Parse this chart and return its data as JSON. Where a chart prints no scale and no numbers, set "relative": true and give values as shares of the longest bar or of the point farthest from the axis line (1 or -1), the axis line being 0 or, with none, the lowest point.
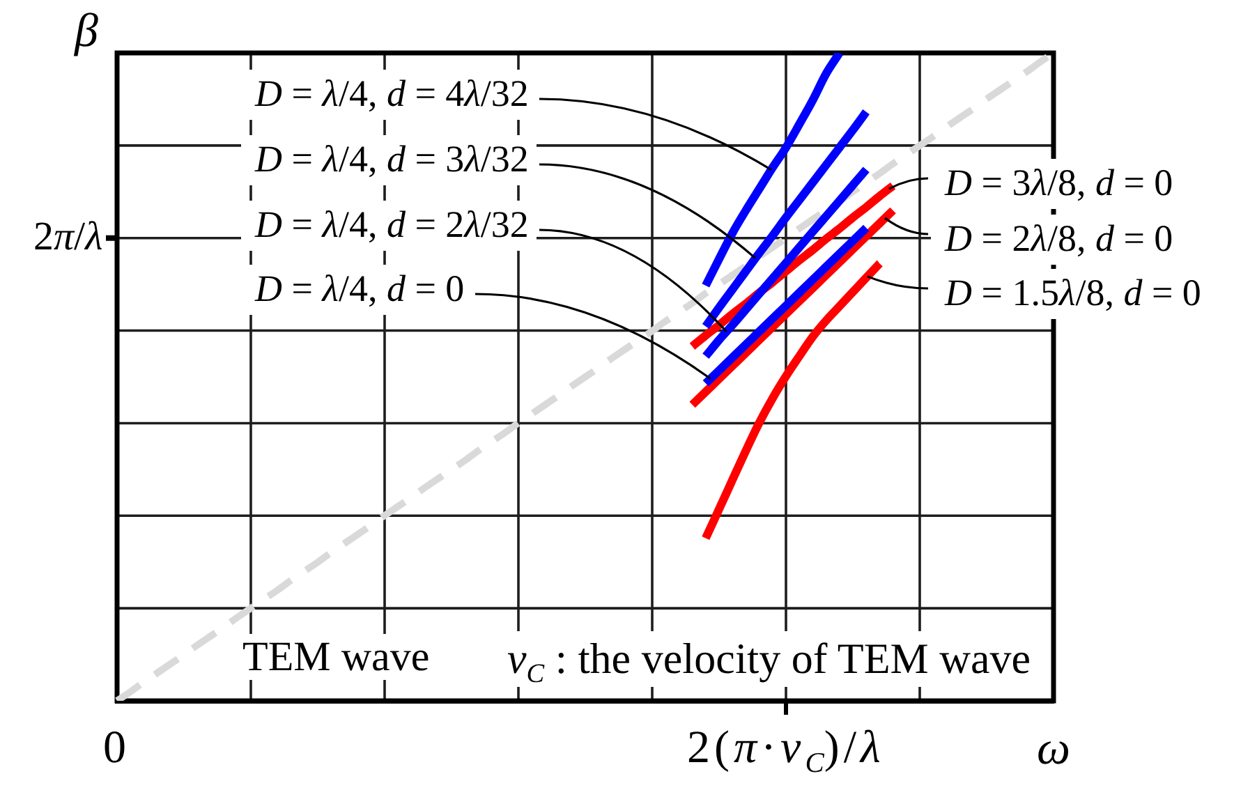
{
  "chart_data": {
    "type": "line",
    "relative": true,
    "xlabel": "ω",
    "ylabel": "β",
    "categories": [
      "0",
      null,
      null,
      null,
      null,
      null,
      null,
      null,
      null,
      null,
      null,
      null,
      null,
      null,
      null,
      null,
      null,
      null,
      null,
      null,
      null,
      null,
      null,
      null,
      null,
      null,
      null,
      null,
      null,
      null,
      null,
      null,
      null,
      null,
      null,
      null,
      null,
      null,
      null,
      null,
      null,
      null,
      null,
      null,
      null,
      null,
      null,
      null,
      null,
      null,
      "2(π·v$_{C}$)/λ",
      null,
      null,
      null,
      null,
      null,
      null,
      null,
      null,
      null,
      null,
      null,
      null,
      null,
      null,
      null,
      null,
      null,
      null,
      null,
      null
    ],
    "annotations": [
      "2π/λ",
      "v$_{C}$ : the velocity of TEM wave"
    ],
    "grid": true,
    "marker": "none",
    "line_style": "solid",
    "series": [
      {
        "name": "D = λ/4, d = 4λ/32",
        "color": "#0000ff",
        "values": [
          null,
          null,
          null,
          null,
          null,
          null,
          null,
          null,
          null,
          null,
          null,
          null,
          null,
          null,
          null,
          null,
          null,
          null,
          null,
          null,
          null,
          null,
          null,
          null,
          null,
          null,
          null,
          null,
          null,
          null,
          null,
          null,
          null,
          null,
          null,
          null,
          null,
          null,
          null,
          null,
          null,
          null,
          null,
          null,
          0.641,
          0.682,
          0.722,
          0.757,
          0.79,
          0.823,
          0.854,
          0.89,
          0.927,
          0.968,
          1,
          null,
          null,
          null,
          null,
          null,
          null,
          null,
          null,
          null,
          null,
          null,
          null,
          null,
          null,
          null,
          null
        ]
      },
      {
        "name": "D = λ/4, d = 3λ/32",
        "color": "#0000ff",
        "values": [
          null,
          null,
          null,
          null,
          null,
          null,
          null,
          null,
          null,
          null,
          null,
          null,
          null,
          null,
          null,
          null,
          null,
          null,
          null,
          null,
          null,
          null,
          null,
          null,
          null,
          null,
          null,
          null,
          null,
          null,
          null,
          null,
          null,
          null,
          null,
          null,
          null,
          null,
          null,
          null,
          null,
          null,
          null,
          null,
          0.578,
          0.607,
          0.635,
          0.663,
          0.691,
          0.718,
          0.746,
          0.773,
          0.8,
          0.827,
          0.854,
          0.881,
          0.909,
          null,
          null,
          null,
          null,
          null,
          null,
          null,
          null,
          null,
          null,
          null,
          null,
          null,
          null
        ]
      },
      {
        "name": "D = λ/4, d = 2λ/32",
        "color": "#0000ff",
        "values": [
          null,
          null,
          null,
          null,
          null,
          null,
          null,
          null,
          null,
          null,
          null,
          null,
          null,
          null,
          null,
          null,
          null,
          null,
          null,
          null,
          null,
          null,
          null,
          null,
          null,
          null,
          null,
          null,
          null,
          null,
          null,
          null,
          null,
          null,
          null,
          null,
          null,
          null,
          null,
          null,
          null,
          null,
          null,
          null,
          0.532,
          0.557,
          0.58,
          0.604,
          0.628,
          0.652,
          0.676,
          0.7,
          0.724,
          0.748,
          0.772,
          0.796,
          0.82,
          null,
          null,
          null,
          null,
          null,
          null,
          null,
          null,
          null,
          null,
          null,
          null,
          null,
          null
        ]
      },
      {
        "name": "D = λ/4, d = 0",
        "color": "#0000ff",
        "values": [
          null,
          null,
          null,
          null,
          null,
          null,
          null,
          null,
          null,
          null,
          null,
          null,
          null,
          null,
          null,
          null,
          null,
          null,
          null,
          null,
          null,
          null,
          null,
          null,
          null,
          null,
          null,
          null,
          null,
          null,
          null,
          null,
          null,
          null,
          null,
          null,
          null,
          null,
          null,
          null,
          null,
          null,
          null,
          null,
          0.49,
          0.51,
          0.53,
          0.55,
          0.57,
          0.59,
          0.61,
          0.63,
          0.65,
          0.67,
          0.69,
          0.71,
          0.73,
          null,
          null,
          null,
          null,
          null,
          null,
          null,
          null,
          null,
          null,
          null,
          null,
          null,
          null
        ]
      },
      {
        "name": "D = 3λ/8, d = 0",
        "color": "#ff0000",
        "values": [
          null,
          null,
          null,
          null,
          null,
          null,
          null,
          null,
          null,
          null,
          null,
          null,
          null,
          null,
          null,
          null,
          null,
          null,
          null,
          null,
          null,
          null,
          null,
          null,
          null,
          null,
          null,
          null,
          null,
          null,
          null,
          null,
          null,
          null,
          null,
          null,
          null,
          null,
          null,
          null,
          null,
          null,
          null,
          0.547,
          0.564,
          0.58,
          0.597,
          0.613,
          0.63,
          0.646,
          0.663,
          0.68,
          0.696,
          0.713,
          0.729,
          0.746,
          0.762,
          0.779,
          0.795,
          null,
          null,
          null,
          null,
          null,
          null,
          null,
          null,
          null,
          null,
          null,
          null
        ]
      },
      {
        "name": "D = 2λ/8, d = 0",
        "color": "#ff0000",
        "values": [
          null,
          null,
          null,
          null,
          null,
          null,
          null,
          null,
          null,
          null,
          null,
          null,
          null,
          null,
          null,
          null,
          null,
          null,
          null,
          null,
          null,
          null,
          null,
          null,
          null,
          null,
          null,
          null,
          null,
          null,
          null,
          null,
          null,
          null,
          null,
          null,
          null,
          null,
          null,
          null,
          null,
          null,
          null,
          0.457,
          0.477,
          0.497,
          0.517,
          0.537,
          0.557,
          0.577,
          0.597,
          0.617,
          0.637,
          0.657,
          0.677,
          0.697,
          0.717,
          0.737,
          0.757,
          null,
          null,
          null,
          null,
          null,
          null,
          null,
          null,
          null,
          null,
          null,
          null
        ]
      },
      {
        "name": "D = 1.5λ/8, d = 0",
        "color": "#ff0000",
        "values": [
          null,
          null,
          null,
          null,
          null,
          null,
          null,
          null,
          null,
          null,
          null,
          null,
          null,
          null,
          null,
          null,
          null,
          null,
          null,
          null,
          null,
          null,
          null,
          null,
          null,
          null,
          null,
          null,
          null,
          null,
          null,
          null,
          null,
          null,
          null,
          null,
          null,
          null,
          null,
          null,
          null,
          null,
          null,
          null,
          0.251,
          0.296,
          0.341,
          0.386,
          0.429,
          0.467,
          0.501,
          0.532,
          0.562,
          0.587,
          0.609,
          0.631,
          0.653,
          0.675,
          null,
          null,
          null,
          null,
          null,
          null,
          null,
          null,
          null,
          null,
          null,
          null,
          null
        ]
      },
      {
        "name": "TEM wave",
        "color": "#d9d9d9",
        "line_style": "dashed",
        "values": [
          0,
          0.014,
          0.029,
          0.043,
          0.057,
          0.071,
          0.086,
          0.1,
          0.114,
          0.129,
          0.143,
          0.157,
          0.171,
          0.186,
          0.2,
          0.214,
          0.229,
          0.243,
          0.257,
          0.271,
          0.286,
          0.3,
          0.314,
          0.329,
          0.343,
          0.357,
          0.371,
          0.386,
          0.4,
          0.414,
          0.429,
          0.443,
          0.457,
          0.471,
          0.486,
          0.5,
          0.514,
          0.529,
          0.543,
          0.557,
          0.571,
          0.586,
          0.6,
          0.614,
          0.629,
          0.643,
          0.657,
          0.671,
          0.686,
          0.7,
          0.714,
          0.729,
          0.743,
          0.757,
          0.771,
          0.786,
          0.8,
          0.814,
          0.829,
          0.843,
          0.857,
          0.871,
          0.886,
          0.9,
          0.914,
          0.929,
          0.943,
          0.957,
          0.971,
          0.986,
          1
        ]
      }
    ]
  }
}
